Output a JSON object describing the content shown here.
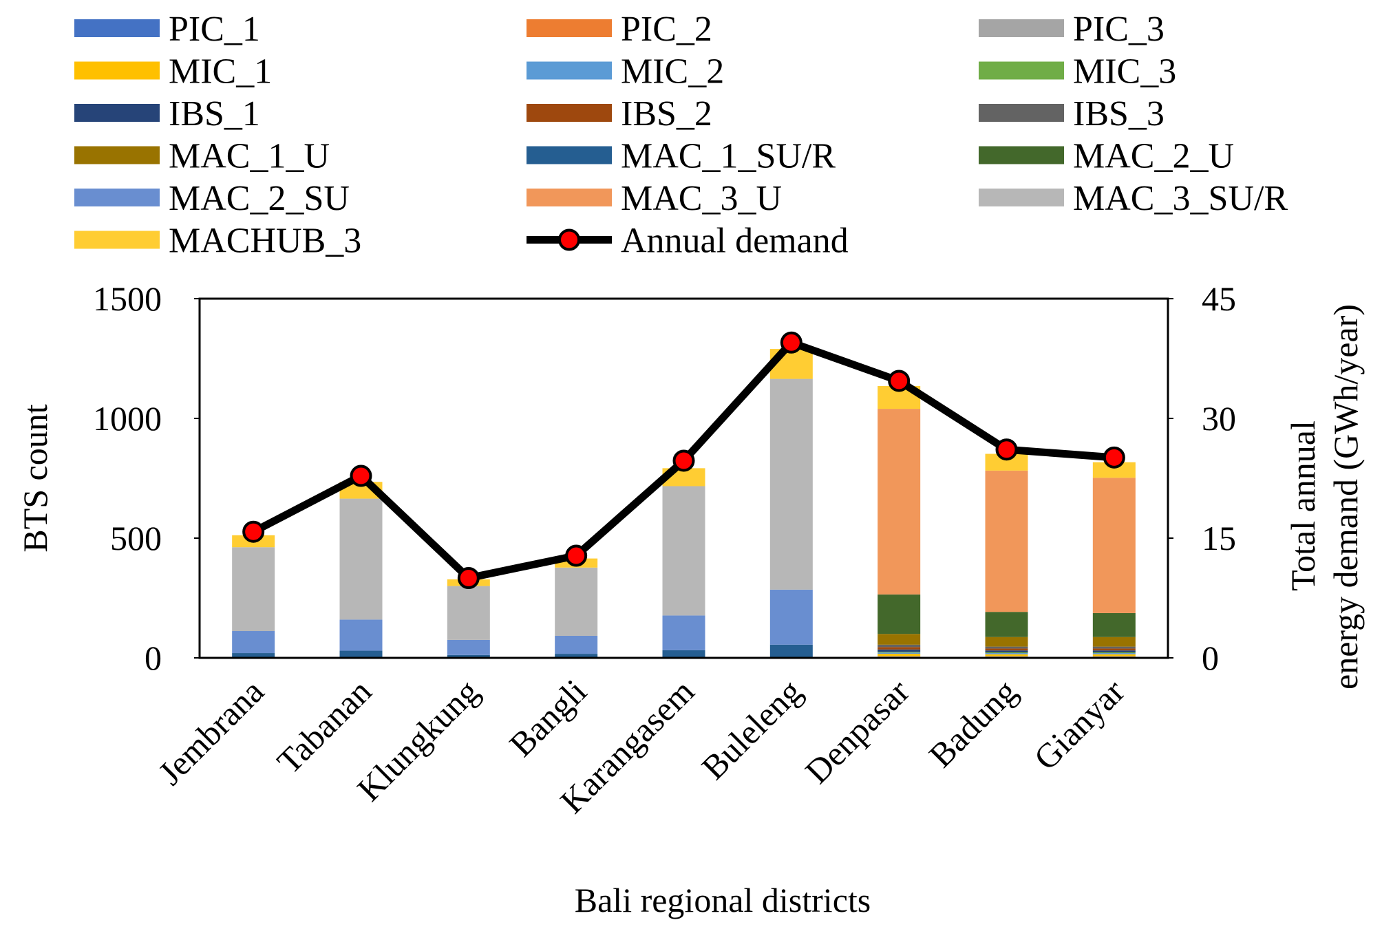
{
  "chart_data": {
    "type": "bar",
    "stacked": true,
    "xlabel": "Bali regional districts",
    "ylabel": "BTS count",
    "y2label_line1": "Total annual",
    "y2label_line2": "energy demand (GWh/year)",
    "categories": [
      "Jembrana",
      "Tabanan",
      "Klungkung",
      "Bangli",
      "Karangasem",
      "Buleleng",
      "Denpasar",
      "Badung",
      "Gianyar"
    ],
    "ylim": [
      0,
      1500
    ],
    "yticks": [
      0,
      500,
      1000,
      1500
    ],
    "y2lim": [
      0,
      45
    ],
    "y2ticks": [
      0,
      15,
      30,
      45
    ],
    "grid": false,
    "legend_position": "top",
    "series": [
      {
        "name": "PIC_1",
        "color": "#4472C4",
        "values": [
          0,
          0,
          0,
          0,
          0,
          0,
          3,
          3,
          3
        ]
      },
      {
        "name": "PIC_2",
        "color": "#ED7D31",
        "values": [
          0,
          0,
          0,
          0,
          0,
          0,
          2,
          2,
          2
        ]
      },
      {
        "name": "PIC_3",
        "color": "#A5A5A5",
        "values": [
          0,
          0,
          0,
          0,
          0,
          0,
          2,
          2,
          2
        ]
      },
      {
        "name": "MIC_1",
        "color": "#FFC000",
        "values": [
          0,
          0,
          0,
          0,
          0,
          0,
          10,
          8,
          8
        ]
      },
      {
        "name": "MIC_2",
        "color": "#5B9BD5",
        "values": [
          0,
          0,
          0,
          0,
          0,
          0,
          5,
          5,
          5
        ]
      },
      {
        "name": "MIC_3",
        "color": "#70AD47",
        "values": [
          0,
          0,
          0,
          0,
          0,
          0,
          3,
          3,
          3
        ]
      },
      {
        "name": "IBS_1",
        "color": "#264478",
        "values": [
          0,
          0,
          0,
          0,
          0,
          0,
          10,
          8,
          8
        ]
      },
      {
        "name": "IBS_2",
        "color": "#9E480E",
        "values": [
          0,
          0,
          0,
          0,
          0,
          0,
          10,
          8,
          8
        ]
      },
      {
        "name": "IBS_3",
        "color": "#636363",
        "values": [
          0,
          0,
          0,
          0,
          0,
          0,
          10,
          8,
          8
        ]
      },
      {
        "name": "MAC_1_U",
        "color": "#997300",
        "values": [
          0,
          0,
          0,
          0,
          0,
          0,
          45,
          40,
          40
        ]
      },
      {
        "name": "MAC_1_SU/R",
        "color": "#255E91",
        "values": [
          20,
          30,
          12,
          17,
          32,
          55,
          0,
          0,
          0
        ]
      },
      {
        "name": "MAC_2_U",
        "color": "#43682B",
        "values": [
          0,
          0,
          0,
          0,
          0,
          0,
          165,
          105,
          100
        ]
      },
      {
        "name": "MAC_2_SU",
        "color": "#698ED0",
        "values": [
          92,
          130,
          63,
          75,
          145,
          230,
          0,
          0,
          0
        ]
      },
      {
        "name": "MAC_3_U",
        "color": "#F1975A",
        "values": [
          0,
          0,
          0,
          0,
          0,
          0,
          775,
          590,
          565
        ]
      },
      {
        "name": "MAC_3_SU/R",
        "color": "#B7B7B7",
        "values": [
          350,
          505,
          225,
          285,
          540,
          880,
          0,
          0,
          0
        ]
      },
      {
        "name": "MACHUB_3",
        "color": "#FFCD33",
        "values": [
          50,
          70,
          28,
          38,
          75,
          125,
          95,
          70,
          65
        ]
      }
    ],
    "line_series": {
      "name": "Annual demand",
      "axis": "right",
      "color": "#000000",
      "marker_color": "#FF0000",
      "values": [
        15.8,
        22.8,
        10.0,
        12.8,
        24.7,
        39.5,
        34.7,
        26.1,
        25.1
      ]
    }
  }
}
